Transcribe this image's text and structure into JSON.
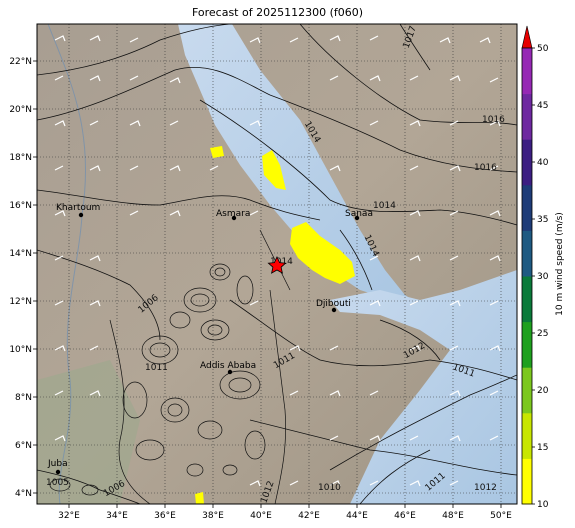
{
  "title": "Forecast of 2025112300 (f060)",
  "map": {
    "lon_ticks": [
      "32°E",
      "34°E",
      "36°E",
      "38°E",
      "40°E",
      "42°E",
      "44°E",
      "46°E",
      "48°E",
      "50°E"
    ],
    "lat_ticks": [
      "22°N",
      "20°N",
      "18°N",
      "16°N",
      "14°N",
      "12°N",
      "10°N",
      "8°N",
      "6°N",
      "4°N"
    ],
    "cities": [
      {
        "name": "Khartoum"
      },
      {
        "name": "Asmara"
      },
      {
        "name": "Sanaa"
      },
      {
        "name": "Djibouti"
      },
      {
        "name": "Addis Ababa"
      },
      {
        "name": "Juba"
      }
    ],
    "isobar_labels": [
      "1017",
      "1016",
      "1016",
      "1014",
      "1014",
      "1014",
      "1014",
      "1012",
      "1011",
      "1011",
      "1011",
      "1012",
      "1010",
      "1011",
      "1012",
      "1006",
      "1006",
      "1005"
    ]
  },
  "colorbar": {
    "label": "10 m wind speed (m/s)",
    "ticks": [
      "10",
      "15",
      "20",
      "25",
      "30",
      "35",
      "40",
      "45",
      "50"
    ],
    "colors": [
      "#ffff00",
      "#c8e600",
      "#7cc81e",
      "#1ea01e",
      "#0a7a3a",
      "#1e5a82",
      "#1e3c78",
      "#3c1e82",
      "#6e28a0",
      "#9628b4"
    ],
    "extend_color": "#e60000"
  }
}
